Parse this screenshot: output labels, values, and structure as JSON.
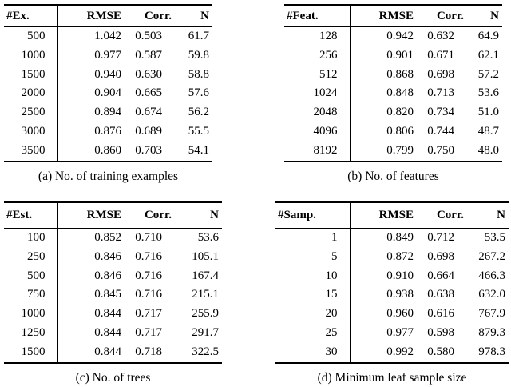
{
  "colors": {
    "background": "#ffffff",
    "text": "#000000",
    "rules": "#000000"
  },
  "tables": [
    {
      "id": "a",
      "param_header": "#Ex.",
      "metric_headers": [
        "RMSE",
        "Corr.",
        "N"
      ],
      "rows": [
        [
          "500",
          "1.042",
          "0.503",
          "61.7"
        ],
        [
          "1000",
          "0.977",
          "0.587",
          "59.8"
        ],
        [
          "1500",
          "0.940",
          "0.630",
          "58.8"
        ],
        [
          "2000",
          "0.904",
          "0.665",
          "57.6"
        ],
        [
          "2500",
          "0.894",
          "0.674",
          "56.2"
        ],
        [
          "3000",
          "0.876",
          "0.689",
          "55.5"
        ],
        [
          "3500",
          "0.860",
          "0.703",
          "54.1"
        ]
      ],
      "caption": "(a) No. of training examples"
    },
    {
      "id": "b",
      "param_header": "#Feat.",
      "metric_headers": [
        "RMSE",
        "Corr.",
        "N"
      ],
      "rows": [
        [
          "128",
          "0.942",
          "0.632",
          "64.9"
        ],
        [
          "256",
          "0.901",
          "0.671",
          "62.1"
        ],
        [
          "512",
          "0.868",
          "0.698",
          "57.2"
        ],
        [
          "1024",
          "0.848",
          "0.713",
          "53.6"
        ],
        [
          "2048",
          "0.820",
          "0.734",
          "51.0"
        ],
        [
          "4096",
          "0.806",
          "0.744",
          "48.7"
        ],
        [
          "8192",
          "0.799",
          "0.750",
          "48.0"
        ]
      ],
      "caption": "(b) No. of features"
    },
    {
      "id": "c",
      "param_header": "#Est.",
      "metric_headers": [
        "RMSE",
        "Corr.",
        "N"
      ],
      "rows": [
        [
          "100",
          "0.852",
          "0.710",
          "53.6"
        ],
        [
          "250",
          "0.846",
          "0.716",
          "105.1"
        ],
        [
          "500",
          "0.846",
          "0.716",
          "167.4"
        ],
        [
          "750",
          "0.845",
          "0.716",
          "215.1"
        ],
        [
          "1000",
          "0.844",
          "0.717",
          "255.9"
        ],
        [
          "1250",
          "0.844",
          "0.717",
          "291.7"
        ],
        [
          "1500",
          "0.844",
          "0.718",
          "322.5"
        ]
      ],
      "caption": "(c) No. of trees"
    },
    {
      "id": "d",
      "param_header": "#Samp.",
      "metric_headers": [
        "RMSE",
        "Corr.",
        "N"
      ],
      "rows": [
        [
          "1",
          "0.849",
          "0.712",
          "53.5"
        ],
        [
          "5",
          "0.872",
          "0.698",
          "267.2"
        ],
        [
          "10",
          "0.910",
          "0.664",
          "466.3"
        ],
        [
          "15",
          "0.938",
          "0.638",
          "632.0"
        ],
        [
          "20",
          "0.960",
          "0.616",
          "767.9"
        ],
        [
          "25",
          "0.977",
          "0.598",
          "879.3"
        ],
        [
          "30",
          "0.992",
          "0.580",
          "978.3"
        ]
      ],
      "caption": "(d) Minimum leaf sample size"
    }
  ]
}
